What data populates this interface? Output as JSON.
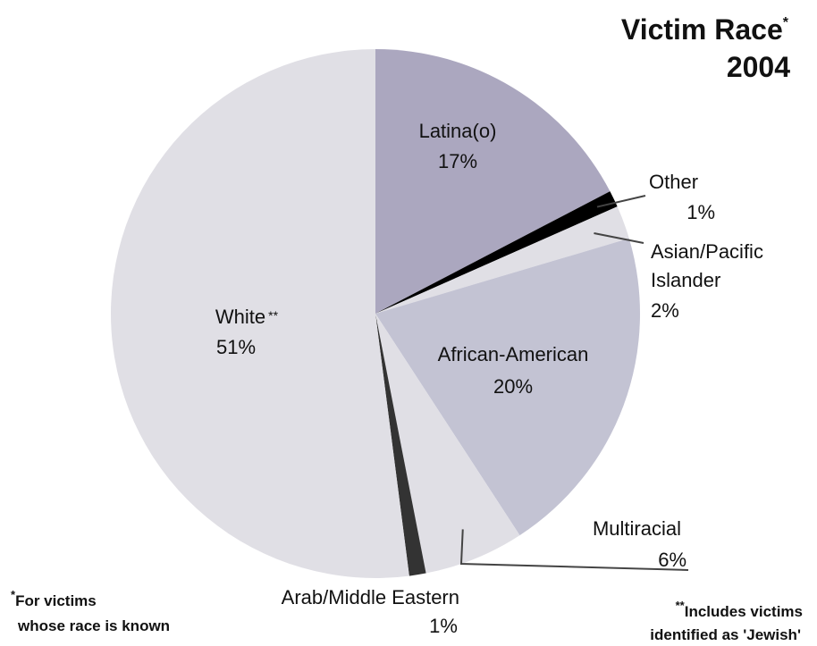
{
  "chart_data": {
    "type": "pie",
    "title": "Victim Race",
    "title_marker": "*",
    "subtitle": "2004",
    "slices": [
      {
        "label": "Latina(o)",
        "marker": "",
        "value": 17,
        "value_label": "17%",
        "color": "#aba7bf"
      },
      {
        "label": "Other",
        "marker": "",
        "value": 1,
        "value_label": "1%",
        "color": "#000000"
      },
      {
        "label": "Asian/Pacific Islander",
        "label_lines": [
          "Asian/Pacific",
          "Islander"
        ],
        "marker": "",
        "value": 2,
        "value_label": "2%",
        "color": "#e0dfe5"
      },
      {
        "label": "African-American",
        "marker": "",
        "value": 20,
        "value_label": "20%",
        "color": "#c3c3d3"
      },
      {
        "label": "Multiracial",
        "marker": "",
        "value": 6,
        "value_label": "6%",
        "color": "#e0dfe5"
      },
      {
        "label": "Arab/Middle Eastern",
        "marker": "",
        "value": 1,
        "value_label": "1%",
        "color": "#333333"
      },
      {
        "label": "White",
        "marker": "**",
        "value": 51,
        "value_label": "51%",
        "color": "#e0dfe5"
      }
    ],
    "footnotes": {
      "left": {
        "marker": "*",
        "lines": [
          "For victims",
          "whose race is known"
        ]
      },
      "right": {
        "marker": "**",
        "lines": [
          "Includes victims",
          "identified as 'Jewish'"
        ]
      }
    }
  }
}
